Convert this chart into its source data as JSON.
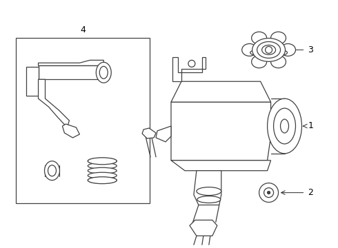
{
  "bg_color": "#ffffff",
  "line_color": "#404040",
  "label_color": "#000000",
  "fig_width": 4.9,
  "fig_height": 3.6,
  "dpi": 100
}
